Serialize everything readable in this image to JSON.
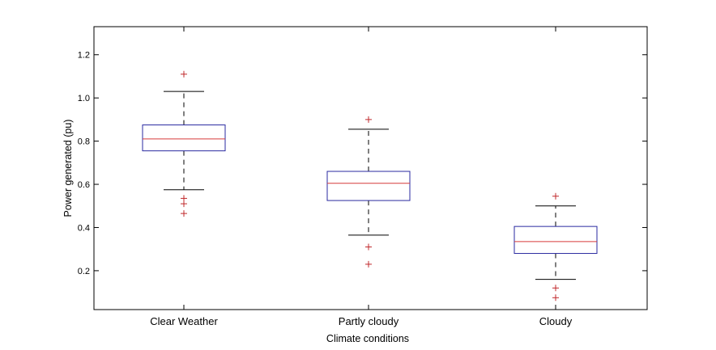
{
  "chart_data": {
    "type": "box",
    "title": "",
    "xlabel": "Climate conditions",
    "ylabel": "Power generated (pu)",
    "ylim": [
      0.02,
      1.33
    ],
    "yticks": [
      0.2,
      0.4,
      0.6,
      0.8,
      1.0,
      1.2
    ],
    "ytick_labels": [
      "0.2",
      "0.4",
      "0.6",
      "0.8",
      "1.0",
      "1.2"
    ],
    "grid": false,
    "legend": "none",
    "categories": [
      "Clear Weather",
      "Partly cloudy",
      "Cloudy"
    ],
    "boxes": [
      {
        "category": "Clear Weather",
        "whisker_low": 0.575,
        "q1": 0.755,
        "median": 0.81,
        "q3": 0.875,
        "whisker_high": 1.03,
        "outliers": [
          1.11,
          0.535,
          0.51,
          0.465
        ]
      },
      {
        "category": "Partly cloudy",
        "whisker_low": 0.365,
        "q1": 0.525,
        "median": 0.605,
        "q3": 0.66,
        "whisker_high": 0.855,
        "outliers": [
          0.9,
          0.31,
          0.23
        ]
      },
      {
        "category": "Cloudy",
        "whisker_low": 0.16,
        "q1": 0.28,
        "median": 0.335,
        "q3": 0.405,
        "whisker_high": 0.5,
        "outliers": [
          0.545,
          0.12,
          0.075
        ]
      }
    ],
    "colors": {
      "box": "#2a2aa0",
      "median": "#d63a3a",
      "whisker": "#000000",
      "outlier": "#c0282b",
      "axis": "#000000"
    }
  }
}
